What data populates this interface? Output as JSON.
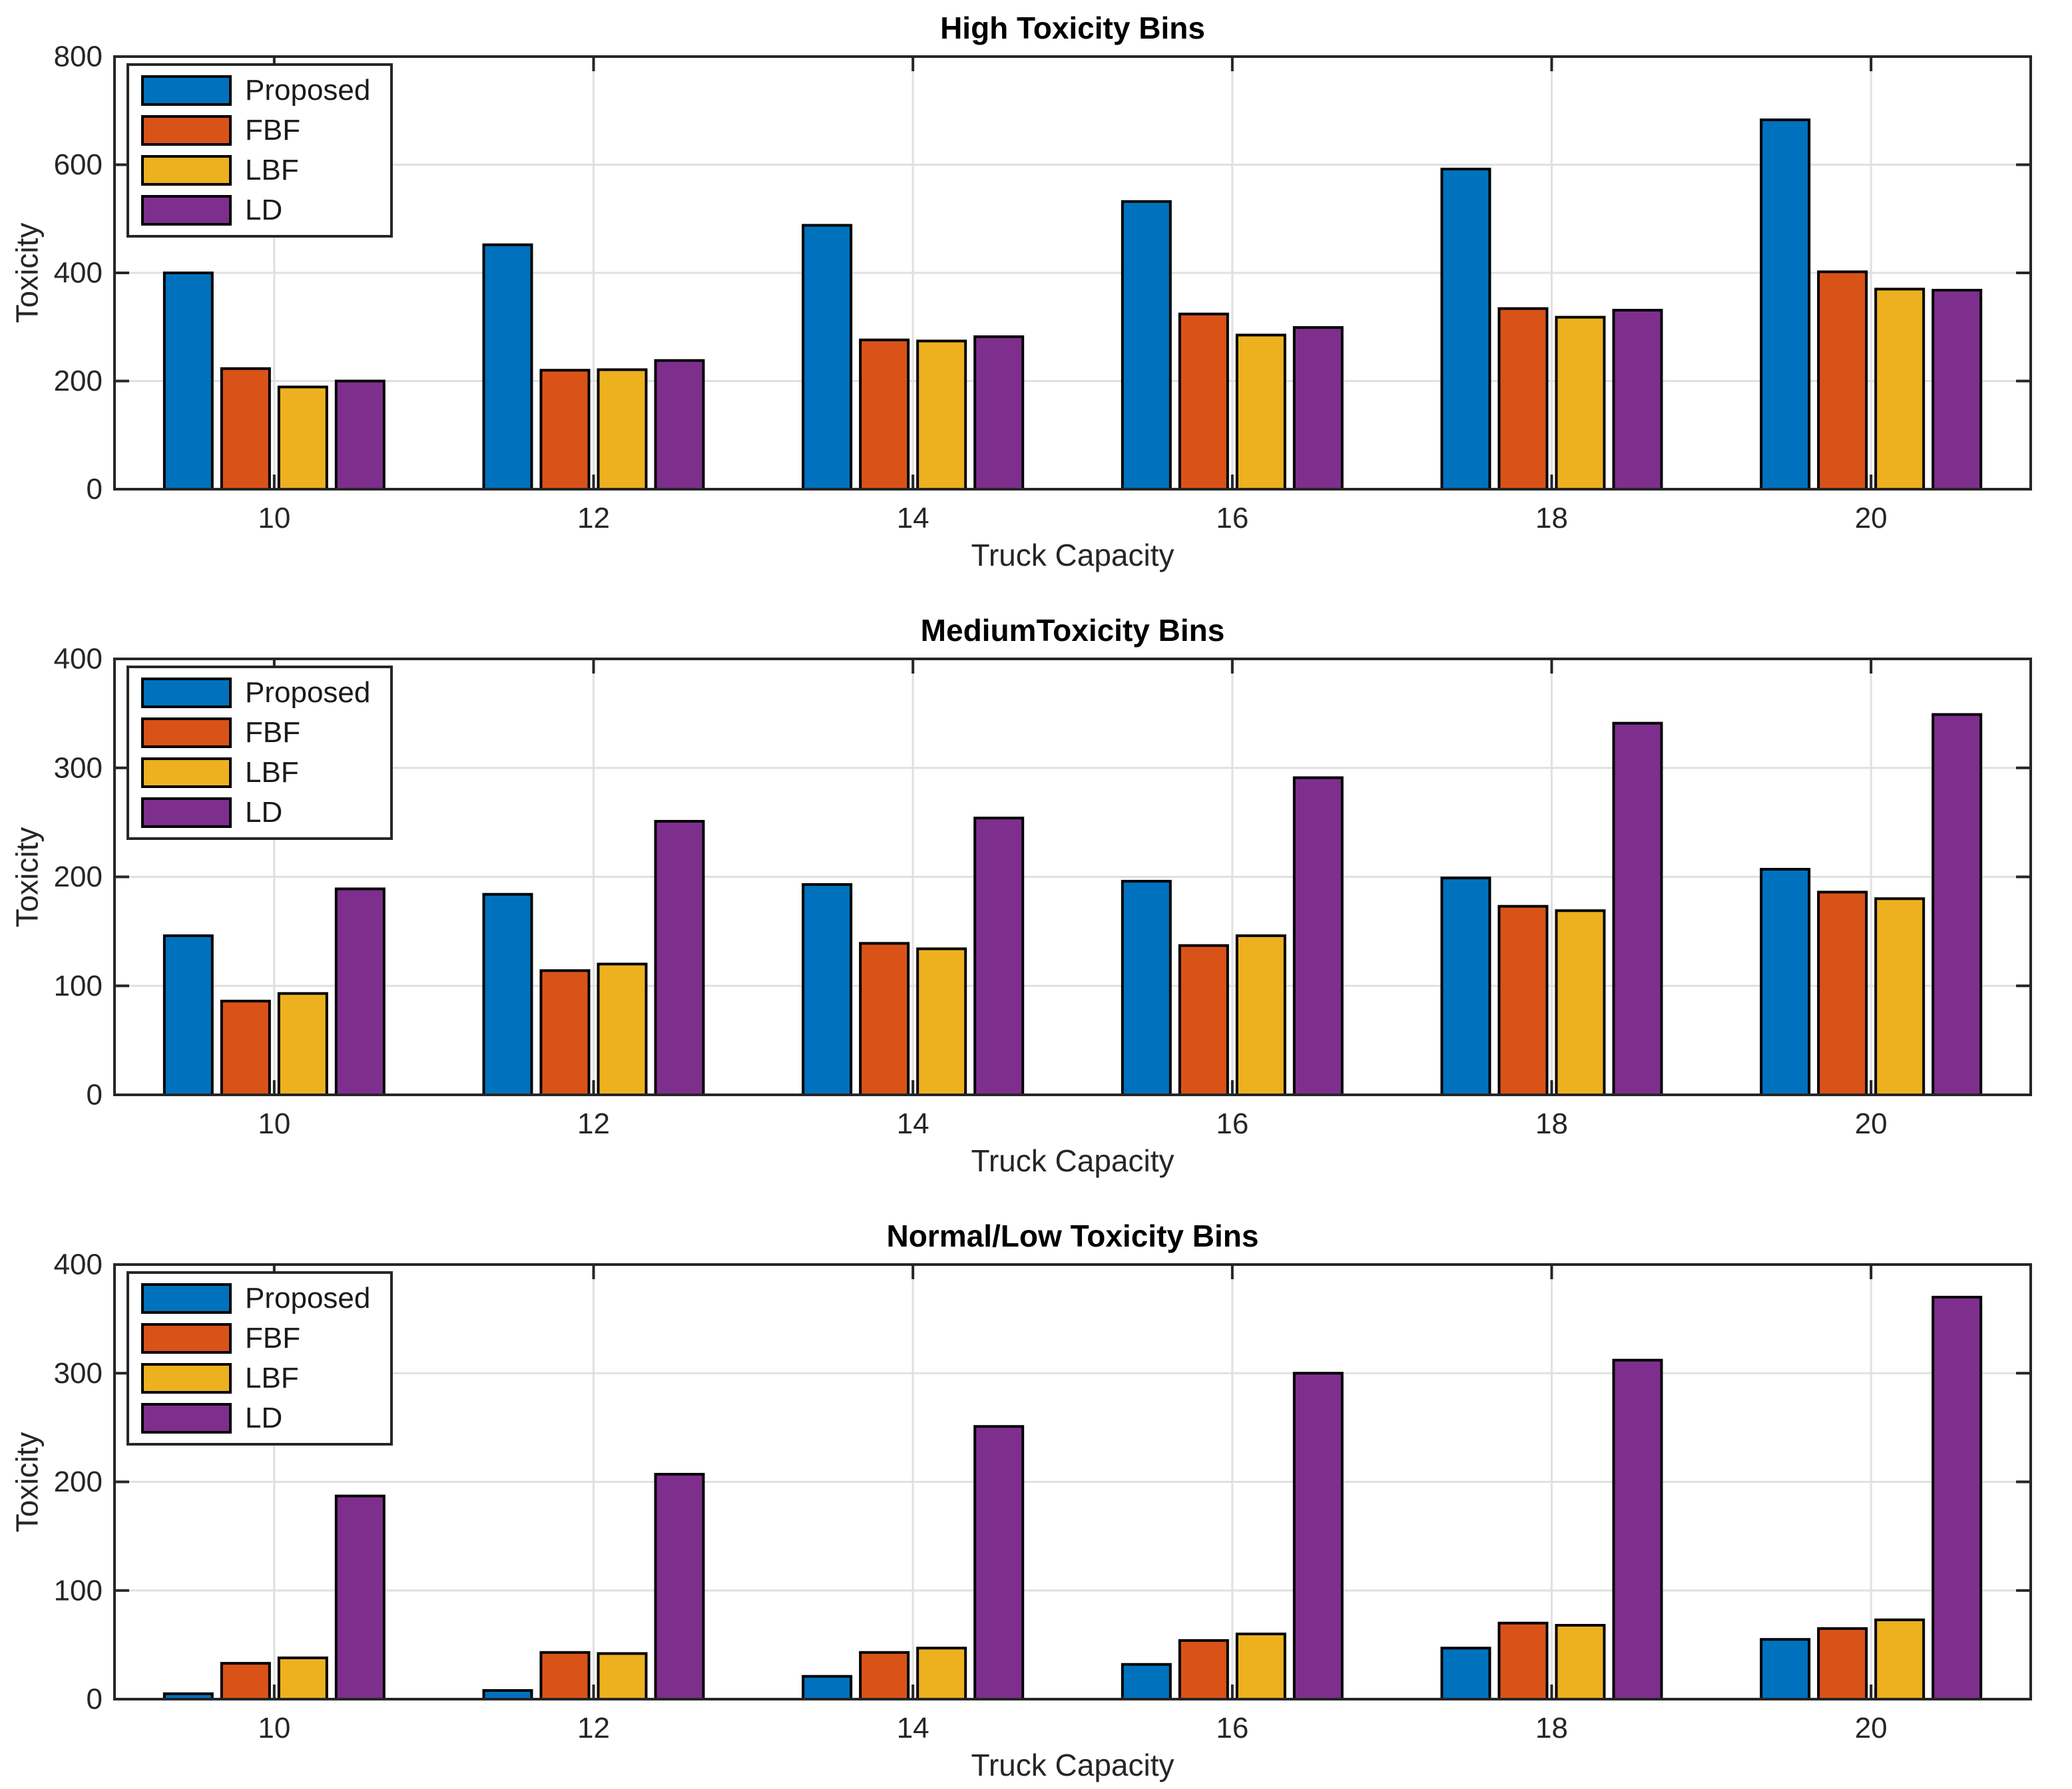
{
  "figure": {
    "background": "#ffffff",
    "axis_color": "#262626",
    "grid_color": "#e0e0e0",
    "bar_edge_color": "#000000",
    "tick_label_color": "#262626"
  },
  "legend": {
    "entries": [
      "Proposed",
      "FBF",
      "LBF",
      "LD"
    ],
    "position": "upper-left"
  },
  "chart_data": [
    {
      "type": "bar",
      "title": "High Toxicity Bins",
      "xlabel": "Truck Capacity",
      "ylabel": "Toxicity",
      "categories": [
        10,
        12,
        14,
        16,
        18,
        20
      ],
      "ylim": [
        0,
        800
      ],
      "yticks": [
        0,
        200,
        400,
        600,
        800
      ],
      "grid": true,
      "legend_position": "upper-left",
      "series": [
        {
          "name": "Proposed",
          "color": "#0072BD",
          "values": [
            400,
            452,
            488,
            532,
            592,
            683
          ]
        },
        {
          "name": "FBF",
          "color": "#D95319",
          "values": [
            223,
            220,
            276,
            324,
            334,
            402
          ]
        },
        {
          "name": "LBF",
          "color": "#EDB120",
          "values": [
            189,
            221,
            274,
            285,
            318,
            370
          ]
        },
        {
          "name": "LD",
          "color": "#7E2F8E",
          "values": [
            200,
            238,
            282,
            299,
            331,
            368
          ]
        }
      ]
    },
    {
      "type": "bar",
      "title": "MediumToxicity Bins",
      "xlabel": "Truck Capacity",
      "ylabel": "Toxicity",
      "categories": [
        10,
        12,
        14,
        16,
        18,
        20
      ],
      "ylim": [
        0,
        400
      ],
      "yticks": [
        0,
        100,
        200,
        300,
        400
      ],
      "grid": true,
      "legend_position": "upper-left",
      "series": [
        {
          "name": "Proposed",
          "color": "#0072BD",
          "values": [
            146,
            184,
            193,
            196,
            199,
            207
          ]
        },
        {
          "name": "FBF",
          "color": "#D95319",
          "values": [
            86,
            114,
            139,
            137,
            173,
            186
          ]
        },
        {
          "name": "LBF",
          "color": "#EDB120",
          "values": [
            93,
            120,
            134,
            146,
            169,
            180
          ]
        },
        {
          "name": "LD",
          "color": "#7E2F8E",
          "values": [
            189,
            251,
            254,
            291,
            341,
            349
          ]
        }
      ]
    },
    {
      "type": "bar",
      "title": "Normal/Low Toxicity Bins",
      "xlabel": "Truck Capacity",
      "ylabel": "Toxicity",
      "categories": [
        10,
        12,
        14,
        16,
        18,
        20
      ],
      "ylim": [
        0,
        400
      ],
      "yticks": [
        0,
        100,
        200,
        300,
        400
      ],
      "grid": true,
      "legend_position": "upper-left",
      "series": [
        {
          "name": "Proposed",
          "color": "#0072BD",
          "values": [
            5,
            8,
            21,
            32,
            47,
            55
          ]
        },
        {
          "name": "FBF",
          "color": "#D95319",
          "values": [
            33,
            43,
            43,
            54,
            70,
            65
          ]
        },
        {
          "name": "LBF",
          "color": "#EDB120",
          "values": [
            38,
            42,
            47,
            60,
            68,
            73
          ]
        },
        {
          "name": "LD",
          "color": "#7E2F8E",
          "values": [
            187,
            207,
            251,
            300,
            312,
            370
          ]
        }
      ]
    }
  ]
}
